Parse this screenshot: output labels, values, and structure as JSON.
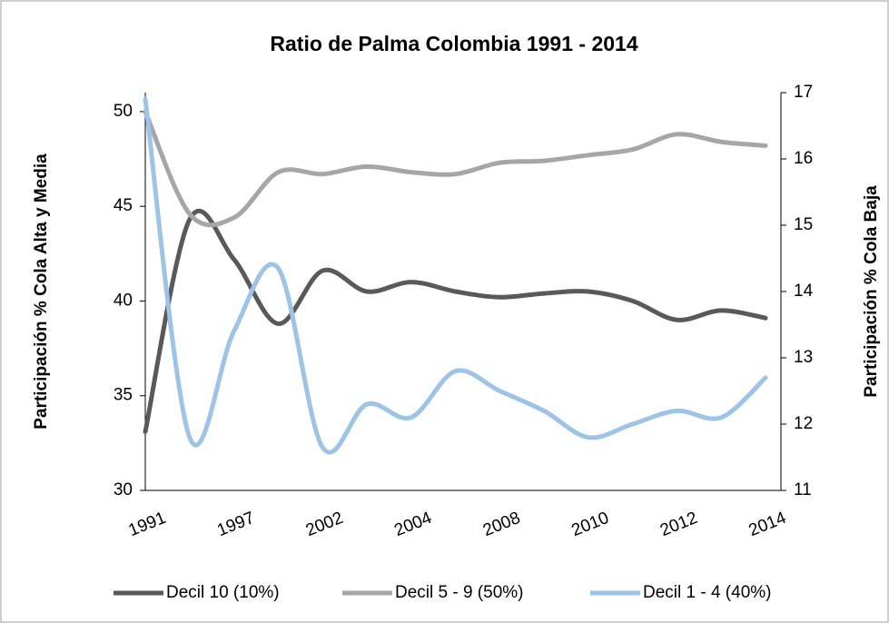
{
  "chart_data": {
    "type": "line",
    "title": "Ratio de Palma Colombia 1991 - 2014",
    "ylabel": "Participación % Cola Alta y Media",
    "y2label": "Participación % Cola Baja",
    "categories": [
      "1991",
      null,
      "1997",
      null,
      "2002",
      null,
      "2004",
      null,
      "2008",
      null,
      "2010",
      null,
      "2012",
      null,
      "2014"
    ],
    "series": [
      {
        "name": "Decil 10 (10%)",
        "color": "#595959",
        "axis": "y",
        "values": [
          33.1,
          44.3,
          42.2,
          38.8,
          41.6,
          40.5,
          41.0,
          40.5,
          40.2,
          40.4,
          40.5,
          40.0,
          39.0,
          39.5,
          39.1
        ]
      },
      {
        "name": "Decil 5 - 9 (50%)",
        "color": "#a6a6a6",
        "axis": "y",
        "values": [
          50.0,
          44.6,
          44.4,
          46.8,
          46.7,
          47.1,
          46.8,
          46.7,
          47.3,
          47.4,
          47.7,
          48.0,
          48.8,
          48.4,
          48.2
        ]
      },
      {
        "name": "Decil 1 - 4 (40%)",
        "color": "#9dc3e6",
        "axis": "y2",
        "values": [
          16.9,
          11.8,
          13.4,
          14.35,
          11.65,
          12.3,
          12.1,
          12.8,
          12.5,
          12.2,
          11.8,
          12.0,
          12.2,
          12.1,
          12.7
        ]
      }
    ],
    "ylim": [
      30,
      51
    ],
    "yticks": [
      30,
      35,
      40,
      45,
      50
    ],
    "y2lim": [
      11,
      17
    ],
    "y2ticks": [
      11,
      12,
      13,
      14,
      15,
      16,
      17
    ],
    "smooth": true,
    "legend": "bottom"
  }
}
